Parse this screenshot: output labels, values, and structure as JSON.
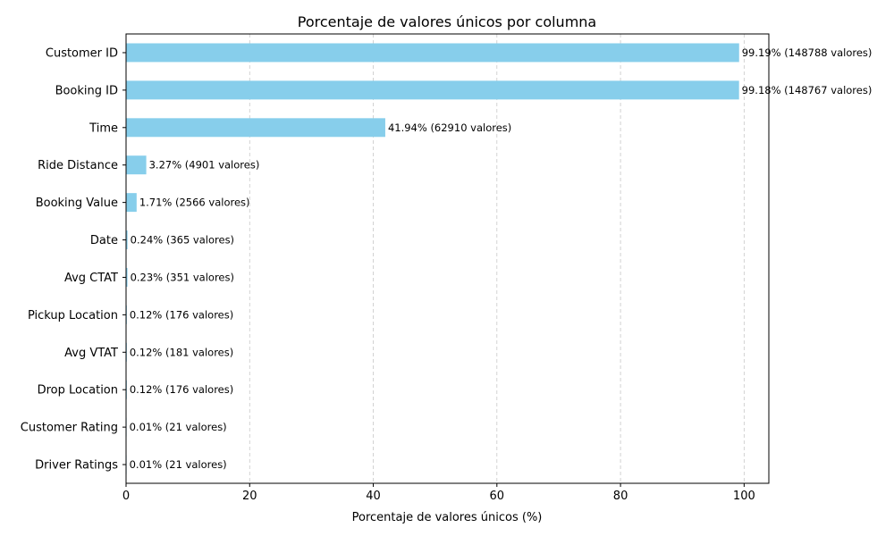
{
  "chart_data": {
    "type": "bar",
    "orientation": "horizontal",
    "title": "Porcentaje de valores únicos por columna",
    "xlabel": "Porcentaje de valores únicos (%)",
    "ylabel": "",
    "xlim": [
      0,
      104
    ],
    "xticks": [
      0,
      20,
      40,
      60,
      80,
      100
    ],
    "grid": "x-dashed",
    "bar_color": "#87CEEB",
    "categories": [
      "Customer ID",
      "Booking ID",
      "Time",
      "Ride Distance",
      "Booking Value",
      "Date",
      "Avg CTAT",
      "Pickup Location",
      "Avg VTAT",
      "Drop Location",
      "Customer Rating",
      "Driver Ratings"
    ],
    "values": [
      99.19,
      99.18,
      41.94,
      3.27,
      1.71,
      0.24,
      0.23,
      0.12,
      0.12,
      0.12,
      0.01,
      0.01
    ],
    "data_labels": [
      "99.19% (148788 valores)",
      "99.18% (148767 valores)",
      "41.94% (62910 valores)",
      "3.27% (4901 valores)",
      "1.71% (2566 valores)",
      "0.24% (365 valores)",
      "0.23% (351 valores)",
      "0.12% (176 valores)",
      "0.12% (181 valores)",
      "0.12% (176 valores)",
      "0.01% (21 valores)",
      "0.01% (21 valores)"
    ]
  }
}
